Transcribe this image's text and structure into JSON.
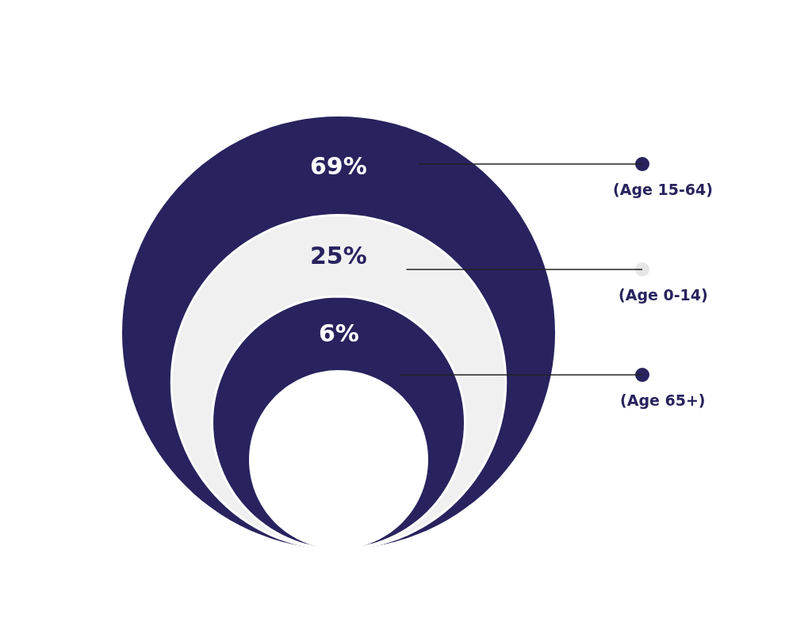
{
  "chart_data": {
    "type": "other",
    "categories": [
      "(Age 15-64)",
      "(Age 0-14)",
      "(Age 65+)"
    ],
    "values": [
      69,
      25,
      6
    ],
    "colors": [
      "#28235e",
      "#f0f0f0",
      "#28235e"
    ],
    "value_labels": [
      "69%",
      "25%",
      "6%"
    ]
  }
}
